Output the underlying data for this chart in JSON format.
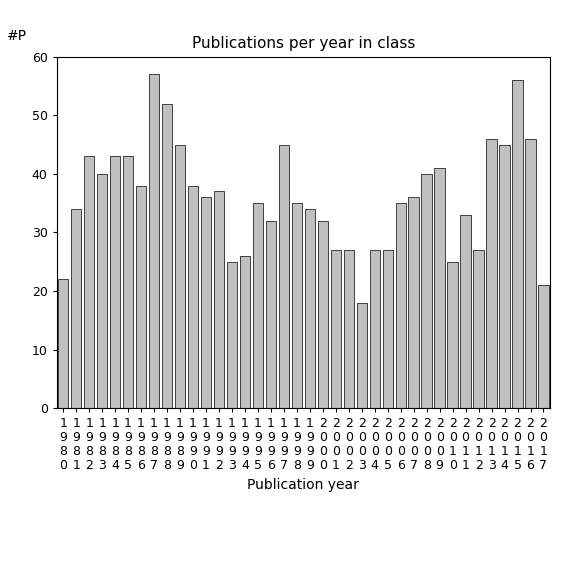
{
  "title": "Publications per year in class",
  "xlabel": "Publication year",
  "ylabel": "#P",
  "years": [
    1980,
    1981,
    1982,
    1983,
    1984,
    1985,
    1986,
    1987,
    1988,
    1989,
    1990,
    1991,
    1992,
    1993,
    1994,
    1995,
    1996,
    1997,
    1998,
    1999,
    2000,
    2001,
    2002,
    2003,
    2004,
    2005,
    2006,
    2007,
    2008,
    2009,
    2010,
    2011,
    2012,
    2013,
    2014,
    2015,
    2016,
    2017
  ],
  "values": [
    22,
    34,
    43,
    40,
    43,
    43,
    38,
    57,
    52,
    45,
    38,
    36,
    37,
    25,
    26,
    35,
    32,
    45,
    35,
    34,
    32,
    27,
    27,
    18,
    27,
    27,
    35,
    36,
    40,
    41,
    25,
    33,
    27,
    46,
    45,
    56,
    46,
    21
  ],
  "bar_color": "#c0c0c0",
  "bar_edge_color": "#000000",
  "ylim": [
    0,
    60
  ],
  "yticks": [
    0,
    10,
    20,
    30,
    40,
    50,
    60
  ],
  "title_fontsize": 11,
  "label_fontsize": 10,
  "tick_fontsize": 9,
  "background_color": "#ffffff"
}
